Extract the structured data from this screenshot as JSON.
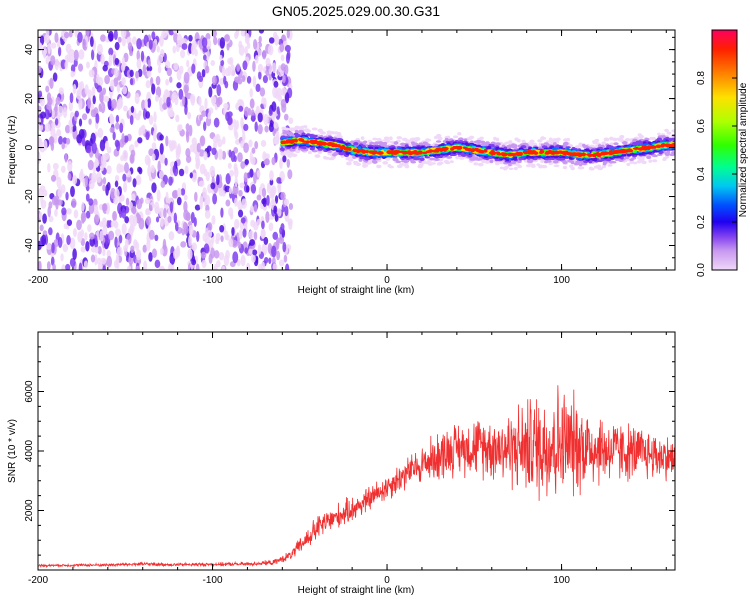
{
  "title": "GN05.2025.029.00.30.G31",
  "chart_data": [
    {
      "type": "heatmap",
      "xlabel": "Height of straight line (km)",
      "ylabel": "Frequency (Hz)",
      "xlim": [
        -200,
        165
      ],
      "ylim": [
        -50,
        48
      ],
      "x_ticks": [
        -200,
        -100,
        0,
        100
      ],
      "y_ticks": [
        -40,
        -20,
        0,
        20,
        40
      ],
      "grid": false,
      "colorbar": {
        "label": "Normalized spectral amplitude",
        "range": [
          0,
          1
        ],
        "ticks": [
          0.0,
          0.2,
          0.4,
          0.6,
          0.8
        ],
        "colormap": [
          "#f0d8f8",
          "#c898f0",
          "#8040f0",
          "#5010e0",
          "#0000f0",
          "#0070ff",
          "#00d0f0",
          "#00ff80",
          "#40ff00",
          "#c0ff00",
          "#ffe000",
          "#ff8000",
          "#ff2000",
          "#ff0060"
        ]
      },
      "ridge": {
        "x": [
          -60,
          -50,
          -40,
          -30,
          -20,
          -10,
          0,
          10,
          20,
          30,
          40,
          50,
          60,
          70,
          80,
          90,
          100,
          110,
          120,
          130,
          140,
          150,
          160,
          165
        ],
        "y": [
          2,
          3,
          2,
          1,
          -1,
          -2,
          -2,
          -2,
          -2,
          -1,
          0,
          -1,
          -2,
          -3,
          -2,
          -2,
          -2,
          -3,
          -3,
          -2,
          -1,
          0,
          1,
          1
        ]
      },
      "noise_region_x": [
        -200,
        -58
      ]
    },
    {
      "type": "line",
      "xlabel": "Height of straight line (km)",
      "ylabel": "SNR (10 * v/v)",
      "xlim": [
        -200,
        165
      ],
      "ylim": [
        0,
        8000
      ],
      "x_ticks": [
        -200,
        -100,
        0,
        100
      ],
      "y_ticks": [
        2000,
        4000,
        6000
      ],
      "grid": false,
      "series": [
        {
          "color": "#f03030",
          "x": [
            -200,
            -180,
            -160,
            -140,
            -120,
            -100,
            -80,
            -65,
            -55,
            -50,
            -45,
            -40,
            -35,
            -30,
            -25,
            -20,
            -15,
            -10,
            -5,
            0,
            5,
            10,
            15,
            20,
            25,
            30,
            35,
            40,
            50,
            60,
            70,
            80,
            90,
            95,
            100,
            110,
            120,
            130,
            140,
            150,
            160,
            165
          ],
          "y": [
            150,
            160,
            170,
            200,
            180,
            190,
            200,
            250,
            500,
            800,
            1100,
            1400,
            1600,
            1750,
            1900,
            2050,
            2200,
            2400,
            2600,
            2800,
            3000,
            3200,
            3400,
            3550,
            3700,
            3850,
            4000,
            4100,
            4150,
            4150,
            4100,
            4150,
            4200,
            4300,
            4250,
            4200,
            4100,
            4000,
            3950,
            3900,
            3800,
            3700
          ],
          "noise_amplitude": [
            40,
            40,
            50,
            60,
            50,
            50,
            60,
            80,
            150,
            250,
            350,
            400,
            400,
            400,
            400,
            400,
            400,
            400,
            400,
            450,
            450,
            500,
            500,
            600,
            700,
            800,
            800,
            800,
            900,
            1000,
            1200,
            1500,
            1800,
            2000,
            1800,
            1500,
            1200,
            1000,
            900,
            800,
            700,
            700
          ]
        }
      ]
    }
  ]
}
